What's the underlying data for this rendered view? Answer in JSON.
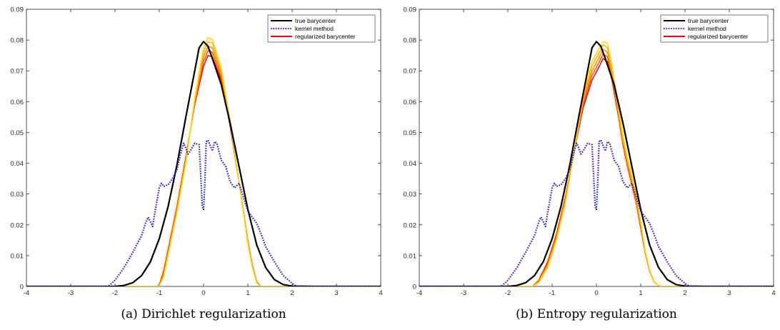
{
  "chart_data": [
    {
      "type": "line",
      "caption": "(a) Dirichlet regularization",
      "xlim": [
        -4,
        4
      ],
      "ylim": [
        0,
        0.09
      ],
      "xticks": [
        "-4",
        "-3",
        "-2",
        "-1",
        "0",
        "1",
        "2",
        "3",
        "4"
      ],
      "yticks": [
        "0",
        "0.01",
        "0.02",
        "0.03",
        "0.04",
        "0.05",
        "0.06",
        "0.07",
        "0.08",
        "0.09"
      ],
      "legend": {
        "placement": "top-right",
        "entries": [
          {
            "name": "true barycenter",
            "color": "#000000",
            "style": "solid"
          },
          {
            "name": "kernel method",
            "color": "#1f1fd6",
            "style": "dotted"
          },
          {
            "name": "regularized barycenter",
            "color": "#ff0000",
            "style": "solid"
          }
        ]
      },
      "series": [
        {
          "role": "true",
          "color": "#000000",
          "x": [
            -4,
            -2.5,
            -2,
            -1.8,
            -1.6,
            -1.4,
            -1.2,
            -1.0,
            -0.8,
            -0.6,
            -0.4,
            -0.2,
            -0.1,
            0,
            0.1,
            0.2,
            0.4,
            0.6,
            0.8,
            1.0,
            1.2,
            1.4,
            1.6,
            1.8,
            2.0,
            2.5,
            4
          ],
          "y": [
            0,
            0,
            0,
            0.0003,
            0.0012,
            0.0035,
            0.008,
            0.0155,
            0.026,
            0.0395,
            0.055,
            0.07,
            0.0775,
            0.0795,
            0.078,
            0.074,
            0.0655,
            0.053,
            0.039,
            0.025,
            0.0135,
            0.0062,
            0.0022,
            0.0006,
            0.0001,
            0,
            0
          ]
        },
        {
          "role": "kernel",
          "color": "#1f1fd6",
          "x": [
            -4,
            -2.15,
            -2.0,
            -1.8,
            -1.6,
            -1.4,
            -1.3,
            -1.25,
            -1.2,
            -1.15,
            -1.1,
            -1.0,
            -0.95,
            -0.9,
            -0.8,
            -0.7,
            -0.6,
            -0.5,
            -0.45,
            -0.4,
            -0.35,
            -0.3,
            -0.2,
            -0.1,
            -0.06,
            -0.03,
            0,
            0.03,
            0.06,
            0.1,
            0.2,
            0.25,
            0.3,
            0.4,
            0.5,
            0.6,
            0.7,
            0.8,
            0.9,
            1.0,
            1.1,
            1.2,
            1.3,
            1.4,
            1.6,
            1.8,
            2.0,
            2.1,
            4
          ],
          "y": [
            0,
            0,
            0.002,
            0.006,
            0.011,
            0.0165,
            0.021,
            0.0225,
            0.021,
            0.0195,
            0.024,
            0.032,
            0.0335,
            0.0325,
            0.033,
            0.035,
            0.038,
            0.044,
            0.0465,
            0.045,
            0.043,
            0.044,
            0.0465,
            0.046,
            0.035,
            0.026,
            0.025,
            0.034,
            0.047,
            0.0475,
            0.044,
            0.047,
            0.0465,
            0.041,
            0.039,
            0.034,
            0.032,
            0.0335,
            0.029,
            0.0245,
            0.0225,
            0.0205,
            0.017,
            0.013,
            0.008,
            0.0035,
            0.001,
            0,
            0
          ]
        },
        {
          "role": "regularized",
          "color": "#ff0000",
          "x": [
            -4,
            -1.05,
            -1.0,
            -0.9,
            -0.8,
            -0.6,
            -0.4,
            -0.2,
            0,
            0.1,
            0.2,
            0.4,
            0.6,
            0.8,
            1.0,
            1.1,
            1.2,
            1.3,
            4
          ],
          "y": [
            0,
            0,
            0.0005,
            0.005,
            0.012,
            0.026,
            0.042,
            0.059,
            0.0715,
            0.075,
            0.0745,
            0.067,
            0.052,
            0.034,
            0.015,
            0.007,
            0.0015,
            0,
            0
          ]
        },
        {
          "role": "regularized",
          "color": "#ff5000",
          "x": [
            -4,
            -1.05,
            -1.0,
            -0.9,
            -0.8,
            -0.6,
            -0.4,
            -0.2,
            0,
            0.1,
            0.2,
            0.4,
            0.6,
            0.8,
            1.0,
            1.1,
            1.2,
            1.3,
            4
          ],
          "y": [
            0,
            0,
            0.0003,
            0.0045,
            0.0115,
            0.0255,
            0.0415,
            0.0595,
            0.073,
            0.0765,
            0.076,
            0.068,
            0.0525,
            0.034,
            0.0148,
            0.0068,
            0.0014,
            0,
            0
          ]
        },
        {
          "role": "regularized",
          "color": "#ff8c00",
          "x": [
            -4,
            -1.05,
            -1.0,
            -0.9,
            -0.8,
            -0.6,
            -0.4,
            -0.2,
            0,
            0.1,
            0.2,
            0.4,
            0.6,
            0.8,
            1.0,
            1.1,
            1.2,
            1.3,
            4
          ],
          "y": [
            0,
            0,
            0.0002,
            0.004,
            0.011,
            0.025,
            0.041,
            0.06,
            0.0745,
            0.078,
            0.0775,
            0.069,
            0.053,
            0.034,
            0.0145,
            0.0066,
            0.0013,
            0,
            0
          ]
        },
        {
          "role": "regularized",
          "color": "#ffb400",
          "x": [
            -4,
            -1.05,
            -1.0,
            -0.9,
            -0.8,
            -0.6,
            -0.4,
            -0.2,
            0,
            0.1,
            0.2,
            0.4,
            0.6,
            0.8,
            1.0,
            1.1,
            1.2,
            1.3,
            4
          ],
          "y": [
            0,
            0,
            0.0001,
            0.0035,
            0.0105,
            0.0245,
            0.0405,
            0.0605,
            0.076,
            0.0795,
            0.079,
            0.07,
            0.0535,
            0.034,
            0.0142,
            0.0064,
            0.0012,
            0,
            0
          ]
        },
        {
          "role": "regularized",
          "color": "#ffd700",
          "x": [
            -4,
            -1.05,
            -1.0,
            -0.9,
            -0.8,
            -0.6,
            -0.4,
            -0.2,
            0,
            0.1,
            0.2,
            0.4,
            0.6,
            0.8,
            1.0,
            1.1,
            1.2,
            1.3,
            4
          ],
          "y": [
            0,
            0,
            0,
            0.003,
            0.01,
            0.024,
            0.04,
            0.061,
            0.0775,
            0.0808,
            0.0802,
            0.071,
            0.054,
            0.034,
            0.014,
            0.0062,
            0.0011,
            0,
            0
          ]
        }
      ]
    },
    {
      "type": "line",
      "caption": "(b) Entropy regularization",
      "xlim": [
        -4,
        4
      ],
      "ylim": [
        0,
        0.09
      ],
      "xticks": [
        "-4",
        "-3",
        "-2",
        "-1",
        "0",
        "1",
        "2",
        "3",
        "4"
      ],
      "yticks": [
        "0",
        "0.01",
        "0.02",
        "0.03",
        "0.04",
        "0.05",
        "0.06",
        "0.07",
        "0.08",
        "0.09"
      ],
      "legend": {
        "placement": "top-right",
        "entries": [
          {
            "name": "true barycenter",
            "color": "#000000",
            "style": "solid"
          },
          {
            "name": "kernel method",
            "color": "#1f1fd6",
            "style": "dotted"
          },
          {
            "name": "regularized barycenter",
            "color": "#ff0000",
            "style": "solid"
          }
        ]
      },
      "series": [
        {
          "role": "true",
          "color": "#000000",
          "x": [
            -4,
            -2.5,
            -2,
            -1.8,
            -1.6,
            -1.4,
            -1.2,
            -1.0,
            -0.8,
            -0.6,
            -0.4,
            -0.2,
            -0.1,
            0,
            0.1,
            0.2,
            0.4,
            0.6,
            0.8,
            1.0,
            1.2,
            1.4,
            1.6,
            1.8,
            2.0,
            2.5,
            4
          ],
          "y": [
            0,
            0,
            0,
            0.0003,
            0.0012,
            0.0035,
            0.008,
            0.0155,
            0.026,
            0.0395,
            0.055,
            0.07,
            0.0775,
            0.0795,
            0.078,
            0.074,
            0.0655,
            0.053,
            0.039,
            0.025,
            0.0135,
            0.0062,
            0.0022,
            0.0006,
            0.0001,
            0,
            0
          ]
        },
        {
          "role": "kernel",
          "color": "#1f1fd6",
          "x": [
            -4,
            -2.15,
            -2.0,
            -1.8,
            -1.6,
            -1.4,
            -1.3,
            -1.25,
            -1.2,
            -1.15,
            -1.1,
            -1.0,
            -0.95,
            -0.9,
            -0.8,
            -0.7,
            -0.6,
            -0.5,
            -0.45,
            -0.4,
            -0.35,
            -0.3,
            -0.2,
            -0.1,
            -0.06,
            -0.03,
            0,
            0.03,
            0.06,
            0.1,
            0.2,
            0.25,
            0.3,
            0.4,
            0.5,
            0.6,
            0.7,
            0.8,
            0.9,
            1.0,
            1.1,
            1.2,
            1.3,
            1.4,
            1.6,
            1.8,
            2.0,
            2.1,
            4
          ],
          "y": [
            0,
            0,
            0.002,
            0.006,
            0.011,
            0.0165,
            0.021,
            0.0225,
            0.021,
            0.0195,
            0.024,
            0.032,
            0.0335,
            0.0325,
            0.033,
            0.035,
            0.038,
            0.044,
            0.0465,
            0.045,
            0.043,
            0.044,
            0.0465,
            0.046,
            0.035,
            0.026,
            0.025,
            0.034,
            0.047,
            0.0475,
            0.044,
            0.047,
            0.0465,
            0.041,
            0.039,
            0.034,
            0.032,
            0.0335,
            0.029,
            0.0245,
            0.0225,
            0.0205,
            0.017,
            0.013,
            0.008,
            0.0035,
            0.001,
            0,
            0
          ]
        },
        {
          "role": "regularized",
          "color": "#ff0000",
          "x": [
            -4,
            -1.45,
            -1.3,
            -1.1,
            -0.9,
            -0.7,
            -0.5,
            -0.3,
            -0.1,
            0.05,
            0.15,
            0.25,
            0.35,
            0.5,
            0.6,
            0.7,
            0.8,
            0.9,
            1.0,
            1.1,
            1.2,
            1.3,
            1.4,
            1.5,
            4
          ],
          "y": [
            0,
            0,
            0.002,
            0.008,
            0.017,
            0.029,
            0.044,
            0.058,
            0.067,
            0.071,
            0.074,
            0.073,
            0.067,
            0.055,
            0.046,
            0.039,
            0.033,
            0.027,
            0.019,
            0.011,
            0.005,
            0.0015,
            0.0003,
            0,
            0
          ]
        },
        {
          "role": "regularized",
          "color": "#ff5000",
          "x": [
            -4,
            -1.45,
            -1.3,
            -1.1,
            -0.9,
            -0.7,
            -0.5,
            -0.3,
            -0.1,
            0.05,
            0.15,
            0.25,
            0.35,
            0.5,
            0.6,
            0.7,
            0.8,
            0.9,
            1.0,
            1.1,
            1.2,
            1.3,
            1.4,
            1.5,
            4
          ],
          "y": [
            0,
            0,
            0.0018,
            0.0075,
            0.0165,
            0.0285,
            0.044,
            0.059,
            0.0685,
            0.0725,
            0.0755,
            0.0745,
            0.068,
            0.0555,
            0.0465,
            0.0395,
            0.0335,
            0.0275,
            0.0195,
            0.0112,
            0.0051,
            0.0015,
            0.0003,
            0,
            0
          ]
        },
        {
          "role": "regularized",
          "color": "#ff8c00",
          "x": [
            -4,
            -1.45,
            -1.3,
            -1.1,
            -0.9,
            -0.7,
            -0.5,
            -0.3,
            -0.1,
            0.05,
            0.15,
            0.25,
            0.35,
            0.5,
            0.6,
            0.7,
            0.8,
            0.9,
            1.0,
            1.1,
            1.2,
            1.3,
            1.4,
            1.5,
            4
          ],
          "y": [
            0,
            0,
            0.0016,
            0.007,
            0.016,
            0.028,
            0.044,
            0.06,
            0.07,
            0.074,
            0.077,
            0.076,
            0.069,
            0.056,
            0.047,
            0.04,
            0.034,
            0.028,
            0.02,
            0.0114,
            0.0052,
            0.0016,
            0.0003,
            0,
            0
          ]
        },
        {
          "role": "regularized",
          "color": "#ffb400",
          "x": [
            -4,
            -1.45,
            -1.3,
            -1.1,
            -0.9,
            -0.7,
            -0.5,
            -0.3,
            -0.1,
            0.05,
            0.15,
            0.25,
            0.35,
            0.5,
            0.6,
            0.7,
            0.8,
            0.9,
            1.0,
            1.1,
            1.2,
            1.3,
            1.4,
            1.5,
            4
          ],
          "y": [
            0,
            0,
            0.0014,
            0.0065,
            0.0155,
            0.0275,
            0.044,
            0.061,
            0.0715,
            0.0755,
            0.0785,
            0.0775,
            0.0705,
            0.057,
            0.048,
            0.041,
            0.035,
            0.029,
            0.0205,
            0.0116,
            0.0053,
            0.0016,
            0.0003,
            0,
            0
          ]
        },
        {
          "role": "regularized",
          "color": "#ffd700",
          "x": [
            -4,
            -1.45,
            -1.3,
            -1.1,
            -0.9,
            -0.7,
            -0.5,
            -0.3,
            -0.1,
            0.05,
            0.15,
            0.25,
            0.35,
            0.5,
            0.6,
            0.7,
            0.8,
            0.9,
            1.0,
            1.1,
            1.2,
            1.3,
            1.4,
            1.5,
            4
          ],
          "y": [
            0,
            0,
            0.0012,
            0.006,
            0.015,
            0.027,
            0.044,
            0.062,
            0.073,
            0.077,
            0.0795,
            0.079,
            0.072,
            0.058,
            0.049,
            0.042,
            0.036,
            0.03,
            0.021,
            0.0118,
            0.0054,
            0.0016,
            0.0003,
            0,
            0
          ]
        }
      ]
    }
  ]
}
